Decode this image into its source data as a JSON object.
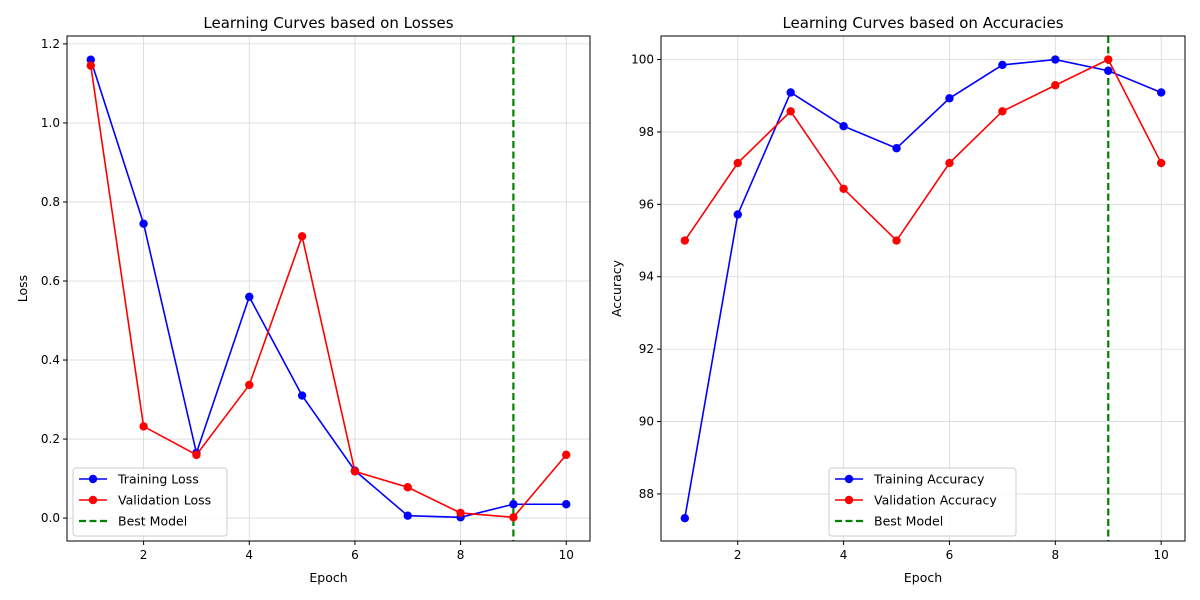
{
  "chart_data": [
    {
      "type": "line",
      "title": "Learning Curves based on Losses",
      "xlabel": "Epoch",
      "ylabel": "Loss",
      "xlim": [
        0.55,
        10.45
      ],
      "ylim": [
        -0.058,
        1.22
      ],
      "xticks": [
        2,
        4,
        6,
        8,
        10
      ],
      "yticks": [
        0.0,
        0.2,
        0.4,
        0.6,
        0.8,
        1.0,
        1.2
      ],
      "ytick_labels": [
        "0.0",
        "0.2",
        "0.4",
        "0.6",
        "0.8",
        "1.0",
        "1.2"
      ],
      "grid": true,
      "legend_position": "lower-left",
      "x": [
        1,
        2,
        3,
        4,
        5,
        6,
        7,
        8,
        9,
        10
      ],
      "series": [
        {
          "name": "Training Loss",
          "color": "#0000ff",
          "marker": "circle",
          "values": [
            1.16,
            0.745,
            0.165,
            0.56,
            0.31,
            0.12,
            0.006,
            0.002,
            0.035,
            0.035
          ]
        },
        {
          "name": "Validation Loss",
          "color": "#ff0000",
          "marker": "circle",
          "values": [
            1.145,
            0.232,
            0.16,
            0.337,
            0.713,
            0.118,
            0.078,
            0.013,
            0.002,
            0.16
          ]
        }
      ],
      "vlines": [
        {
          "name": "Best Model",
          "x": 9,
          "color": "#008000",
          "style": "dashed"
        }
      ]
    },
    {
      "type": "line",
      "title": "Learning Curves based on Accuracies",
      "xlabel": "Epoch",
      "ylabel": "Accuracy",
      "xlim": [
        0.55,
        10.45
      ],
      "ylim": [
        86.7,
        100.65
      ],
      "xticks": [
        2,
        4,
        6,
        8,
        10
      ],
      "yticks": [
        88,
        90,
        92,
        94,
        96,
        98,
        100
      ],
      "ytick_labels": [
        "88",
        "90",
        "92",
        "94",
        "96",
        "98",
        "100"
      ],
      "grid": true,
      "legend_position": "lower-center",
      "x": [
        1,
        2,
        3,
        4,
        5,
        6,
        7,
        8,
        9,
        10
      ],
      "series": [
        {
          "name": "Training Accuracy",
          "color": "#0000ff",
          "marker": "circle",
          "values": [
            87.33,
            95.72,
            99.09,
            98.16,
            97.55,
            98.93,
            99.85,
            100.0,
            99.69,
            99.09
          ]
        },
        {
          "name": "Validation Accuracy",
          "color": "#ff0000",
          "marker": "circle",
          "values": [
            95.0,
            97.14,
            98.57,
            96.43,
            95.0,
            97.14,
            98.57,
            99.29,
            100.0,
            97.14
          ]
        }
      ],
      "vlines": [
        {
          "name": "Best Model",
          "x": 9,
          "color": "#008000",
          "style": "dashed"
        }
      ]
    }
  ]
}
